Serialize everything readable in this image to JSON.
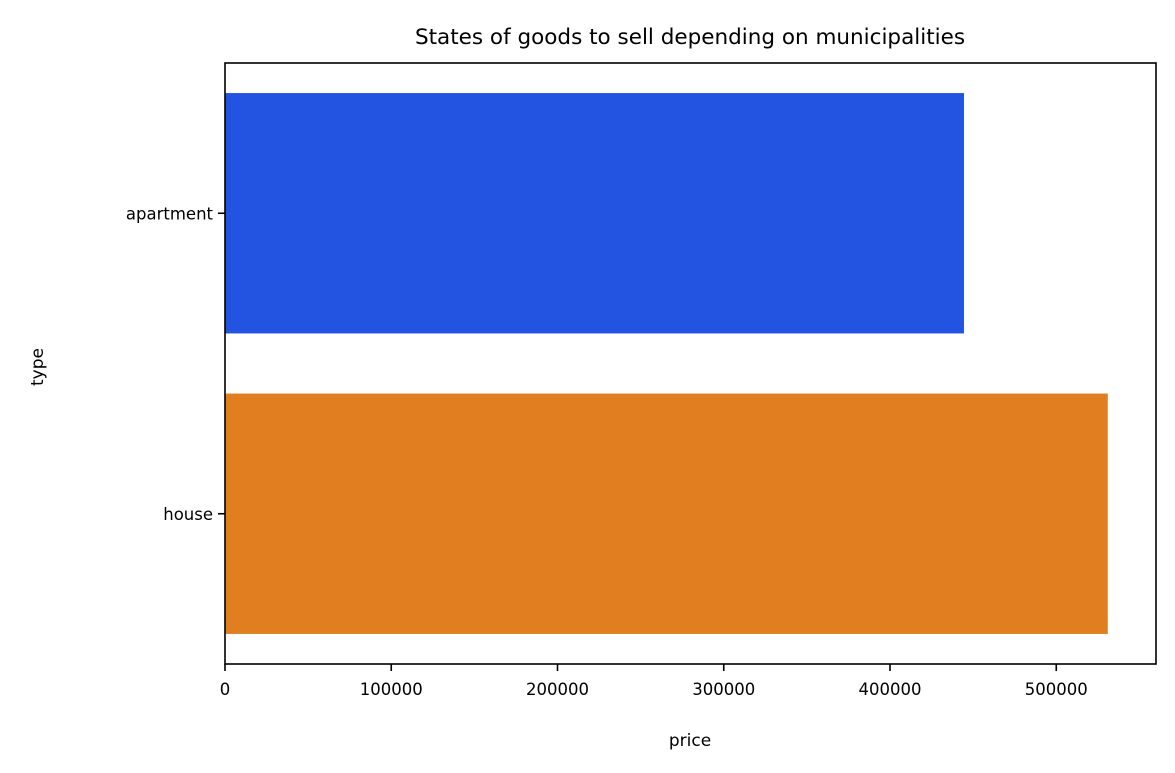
{
  "chart_data": {
    "type": "bar",
    "orientation": "horizontal",
    "title": "States of goods to sell depending on municipalities",
    "xlabel": "price",
    "ylabel": "type",
    "categories": [
      "apartment",
      "house"
    ],
    "values": [
      444500,
      531000
    ],
    "colors": [
      "#2353e1",
      "#e07e20"
    ],
    "xlim": [
      0,
      560000
    ],
    "xticks": [
      0,
      100000,
      200000,
      300000,
      400000,
      500000
    ],
    "xtick_labels": [
      "0",
      "100000",
      "200000",
      "300000",
      "400000",
      "500000"
    ],
    "grid": false,
    "legend": "none"
  }
}
